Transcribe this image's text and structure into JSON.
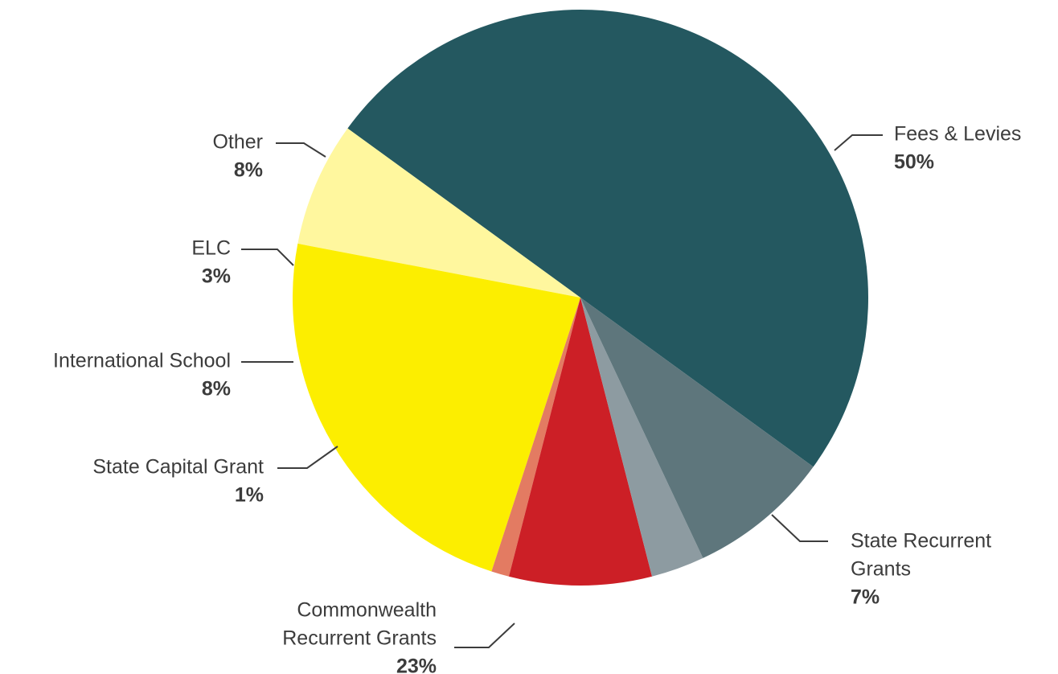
{
  "chart_data": {
    "type": "pie",
    "slices": [
      {
        "label_lines": [
          "Fees & Levies"
        ],
        "value": 50,
        "value_label": "50%",
        "color": "#245860"
      },
      {
        "label_lines": [
          "State Recurrent",
          "Grants"
        ],
        "value": 7,
        "value_label": "7%",
        "color": "#fff79e"
      },
      {
        "label_lines": [
          "Commonwealth",
          "Recurrent Grants"
        ],
        "value": 23,
        "value_label": "23%",
        "color": "#fcee00"
      },
      {
        "label_lines": [
          "State Capital Grant"
        ],
        "value": 1,
        "value_label": "1%",
        "color": "#e37b62"
      },
      {
        "label_lines": [
          "International School"
        ],
        "value": 8,
        "value_label": "8%",
        "color": "#cc1f26"
      },
      {
        "label_lines": [
          "ELC"
        ],
        "value": 3,
        "value_label": "3%",
        "color": "#8d9ba1"
      },
      {
        "label_lines": [
          "Other"
        ],
        "value": 8,
        "value_label": "8%",
        "color": "#5e767c"
      }
    ]
  }
}
